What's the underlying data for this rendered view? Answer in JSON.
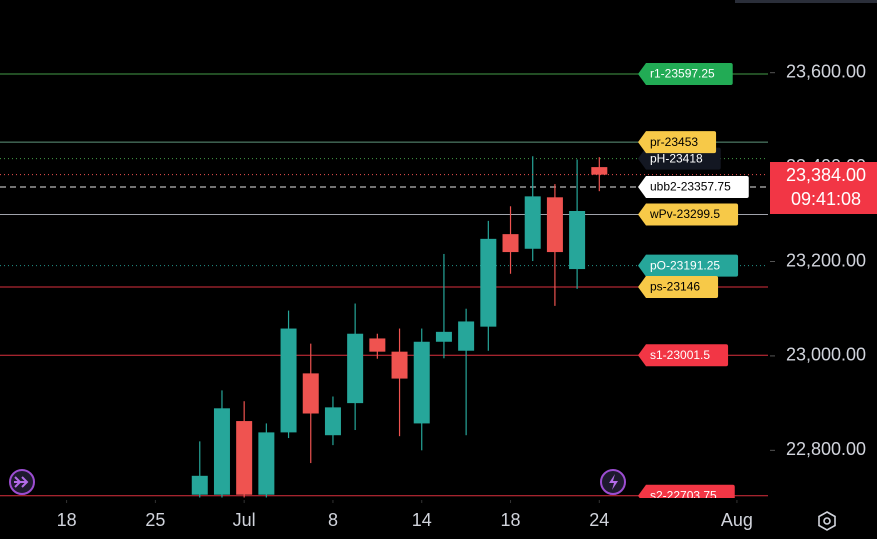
{
  "chart_data": {
    "type": "candlestick",
    "up_color": "#26a69a",
    "down_color": "#ef5350",
    "open": [
      22706,
      22706,
      22862,
      22706,
      22838,
      22963,
      22832,
      22900,
      23037,
      23009,
      22857,
      23030,
      23011,
      23062,
      23258,
      23227,
      23336,
      23184,
      23400
    ],
    "high": [
      22819,
      22927,
      22904,
      22857,
      23096,
      23026,
      22914,
      23111,
      23047,
      23058,
      23058,
      23216,
      23100,
      23286,
      23317,
      23423,
      23364,
      23416,
      23421
    ],
    "low": [
      22700,
      22700,
      22700,
      22700,
      22826,
      22773,
      22811,
      22843,
      22994,
      22830,
      22800,
      22995,
      22832,
      23011,
      23174,
      23201,
      23106,
      23142,
      23349
    ],
    "close": [
      22746,
      22889,
      22706,
      22838,
      23058,
      22878,
      22891,
      23047,
      23009,
      22952,
      23030,
      23051,
      23073,
      23248,
      23220,
      23338,
      23220,
      23307,
      23384
    ],
    "ylim": [
      22699,
      23754
    ],
    "yticks": [
      {
        "value": 22800,
        "label": "22,800.00"
      },
      {
        "value": 23000,
        "label": "23,000.00"
      },
      {
        "value": 23200,
        "label": "23,200.00"
      },
      {
        "value": 23400,
        "label": "23,400.00"
      },
      {
        "value": 23600,
        "label": "23,600.00"
      }
    ],
    "xlim": [
      -9,
      25.6
    ],
    "xticks": [
      {
        "value": -6,
        "label": "18"
      },
      {
        "value": -2,
        "label": "25"
      },
      {
        "value": 2,
        "label": "Jul"
      },
      {
        "value": 6,
        "label": "8"
      },
      {
        "value": 10,
        "label": "14"
      },
      {
        "value": 14,
        "label": "18"
      },
      {
        "value": 18,
        "label": "24"
      },
      {
        "value": 24.2,
        "label": "Aug"
      }
    ],
    "price_label": "23,384.00",
    "countdown": "09:41:08",
    "levels": [
      {
        "label": "r1-23597.25",
        "value": 23597.25,
        "color": "#4caf50",
        "tag_color": "#22ab55",
        "text_color": "#ffffff",
        "style": "solid"
      },
      {
        "label": "pr-23453",
        "value": 23453,
        "color": "#6aa88a",
        "tag_color": "#f7c948",
        "text_color": "#000000",
        "style": "solid"
      },
      {
        "label": "pH-23418",
        "value": 23418,
        "color": "#4caf50",
        "tag_color": "#131722",
        "text_color": "#ffffff",
        "style": "dotted"
      },
      {
        "label": "ubb2-23357.75",
        "value": 23357.75,
        "color": "#ffffff",
        "tag_color": "#ffffff",
        "text_color": "#000000",
        "style": "dashed"
      },
      {
        "label": "wPv-23299.5",
        "value": 23299.5,
        "color": "#b2b5be",
        "tag_color": "#f7c948",
        "text_color": "#000000",
        "style": "solid"
      },
      {
        "label": "pO-23191.25",
        "value": 23191.25,
        "color": "#26a69a",
        "tag_color": "#26a69a",
        "text_color": "#ffffff",
        "style": "dotted"
      },
      {
        "label": "ps-23146",
        "value": 23146,
        "color": "#f23645",
        "tag_color": "#f7c948",
        "text_color": "#000000",
        "style": "solid"
      },
      {
        "label": "s1-23001.5",
        "value": 23001.5,
        "color": "#f23645",
        "tag_color": "#f23645",
        "text_color": "#ffffff",
        "style": "solid"
      },
      {
        "label": "s2-22703.75",
        "value": 22703.75,
        "color": "#f23645",
        "tag_color": "#f23645",
        "text_color": "#ffffff",
        "style": "solid"
      }
    ]
  }
}
